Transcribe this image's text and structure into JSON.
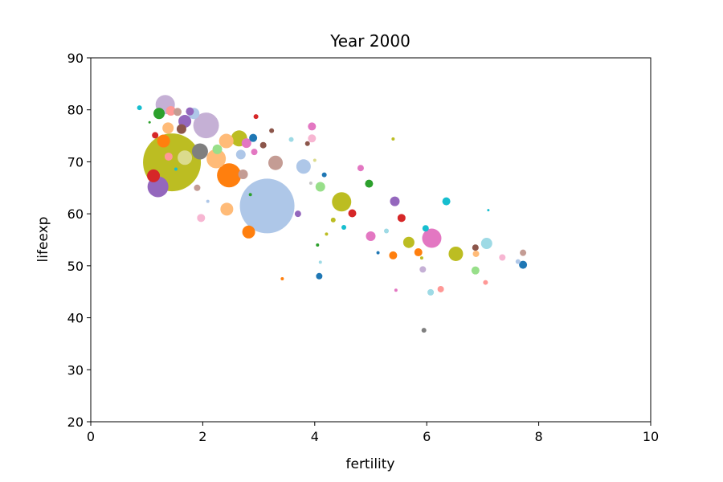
{
  "chart_data": {
    "type": "scatter",
    "title": "Year 2000",
    "xlabel": "fertility",
    "ylabel": "lifeexp",
    "xlim": [
      0,
      10
    ],
    "ylim": [
      20,
      90
    ],
    "xticks": [
      "0",
      "2",
      "4",
      "6",
      "8",
      "10"
    ],
    "yticks": [
      "20",
      "30",
      "40",
      "50",
      "60",
      "70",
      "80",
      "90"
    ],
    "grid": false,
    "legend": "none",
    "points": [
      {
        "x": 0.87,
        "y": 80.4,
        "s": 3,
        "c": "#17becf"
      },
      {
        "x": 1.33,
        "y": 81.0,
        "s": 12,
        "c": "#c5b0d5"
      },
      {
        "x": 1.45,
        "y": 69.9,
        "s": 36,
        "c": "#bcbd22"
      },
      {
        "x": 3.15,
        "y": 61.5,
        "s": 34,
        "c": "#aec7e8"
      },
      {
        "x": 1.2,
        "y": 65.2,
        "s": 13,
        "c": "#9467bd"
      },
      {
        "x": 2.06,
        "y": 77.0,
        "s": 16,
        "c": "#c5b0d5"
      },
      {
        "x": 2.47,
        "y": 67.4,
        "s": 15,
        "c": "#ff7f0e"
      },
      {
        "x": 1.22,
        "y": 79.3,
        "s": 7,
        "c": "#2ca02c"
      },
      {
        "x": 1.68,
        "y": 77.8,
        "s": 8,
        "c": "#9467bd"
      },
      {
        "x": 1.38,
        "y": 76.5,
        "s": 7,
        "c": "#ffbb78"
      },
      {
        "x": 1.3,
        "y": 74.0,
        "s": 8,
        "c": "#ff7f0e"
      },
      {
        "x": 1.12,
        "y": 67.3,
        "s": 8,
        "c": "#d62728"
      },
      {
        "x": 1.68,
        "y": 70.8,
        "s": 9,
        "c": "#dbdb8d"
      },
      {
        "x": 1.95,
        "y": 72.0,
        "s": 10,
        "c": "#7f7f7f"
      },
      {
        "x": 2.24,
        "y": 70.6,
        "s": 12,
        "c": "#ffbb78"
      },
      {
        "x": 2.42,
        "y": 74.0,
        "s": 9,
        "c": "#ffbb78"
      },
      {
        "x": 2.65,
        "y": 74.5,
        "s": 10,
        "c": "#bcbd22"
      },
      {
        "x": 2.68,
        "y": 71.4,
        "s": 6,
        "c": "#aec7e8"
      },
      {
        "x": 1.84,
        "y": 79.3,
        "s": 7,
        "c": "#aec7e8"
      },
      {
        "x": 1.77,
        "y": 79.7,
        "s": 5,
        "c": "#9467bd"
      },
      {
        "x": 1.55,
        "y": 79.6,
        "s": 5,
        "c": "#c49c94"
      },
      {
        "x": 2.9,
        "y": 74.6,
        "s": 5,
        "c": "#1f77b4"
      },
      {
        "x": 2.95,
        "y": 78.7,
        "s": 3,
        "c": "#d62728"
      },
      {
        "x": 3.08,
        "y": 73.2,
        "s": 4,
        "c": "#8c564b"
      },
      {
        "x": 2.72,
        "y": 67.6,
        "s": 6,
        "c": "#c49c94"
      },
      {
        "x": 3.3,
        "y": 69.8,
        "s": 9,
        "c": "#c49c94"
      },
      {
        "x": 3.8,
        "y": 69.1,
        "s": 9,
        "c": "#aec7e8"
      },
      {
        "x": 2.43,
        "y": 60.9,
        "s": 8,
        "c": "#ffbb78"
      },
      {
        "x": 2.82,
        "y": 56.5,
        "s": 8,
        "c": "#ff7f0e"
      },
      {
        "x": 4.48,
        "y": 62.3,
        "s": 12,
        "c": "#bcbd22"
      },
      {
        "x": 4.1,
        "y": 65.2,
        "s": 6,
        "c": "#98df8a"
      },
      {
        "x": 4.67,
        "y": 60.1,
        "s": 5,
        "c": "#d62728"
      },
      {
        "x": 4.97,
        "y": 65.8,
        "s": 5,
        "c": "#2ca02c"
      },
      {
        "x": 3.95,
        "y": 76.8,
        "s": 5,
        "c": "#e377c2"
      },
      {
        "x": 3.95,
        "y": 74.5,
        "s": 5,
        "c": "#f7b6d2"
      },
      {
        "x": 3.87,
        "y": 73.5,
        "s": 3,
        "c": "#8c564b"
      },
      {
        "x": 3.23,
        "y": 76.0,
        "s": 3,
        "c": "#8c564b"
      },
      {
        "x": 3.7,
        "y": 60.0,
        "s": 4,
        "c": "#9467bd"
      },
      {
        "x": 4.17,
        "y": 67.5,
        "s": 3,
        "c": "#1f77b4"
      },
      {
        "x": 4.82,
        "y": 68.8,
        "s": 4,
        "c": "#e377c2"
      },
      {
        "x": 5.43,
        "y": 62.4,
        "s": 6,
        "c": "#9467bd"
      },
      {
        "x": 5.55,
        "y": 59.2,
        "s": 5,
        "c": "#d62728"
      },
      {
        "x": 5.0,
        "y": 55.7,
        "s": 6,
        "c": "#e377c2"
      },
      {
        "x": 6.09,
        "y": 55.3,
        "s": 12,
        "c": "#e377c2"
      },
      {
        "x": 5.68,
        "y": 54.5,
        "s": 7,
        "c": "#bcbd22"
      },
      {
        "x": 6.52,
        "y": 52.3,
        "s": 9,
        "c": "#bcbd22"
      },
      {
        "x": 6.35,
        "y": 62.4,
        "s": 5,
        "c": "#17becf"
      },
      {
        "x": 5.85,
        "y": 52.6,
        "s": 5,
        "c": "#ff7f0e"
      },
      {
        "x": 5.4,
        "y": 52.0,
        "s": 5,
        "c": "#ff7f0e"
      },
      {
        "x": 7.07,
        "y": 54.3,
        "s": 7,
        "c": "#9edae5"
      },
      {
        "x": 6.87,
        "y": 53.5,
        "s": 4,
        "c": "#8c564b"
      },
      {
        "x": 6.88,
        "y": 52.3,
        "s": 4,
        "c": "#ffbb78"
      },
      {
        "x": 7.72,
        "y": 52.5,
        "s": 4,
        "c": "#c49c94"
      },
      {
        "x": 7.72,
        "y": 50.2,
        "s": 5,
        "c": "#1f77b4"
      },
      {
        "x": 7.35,
        "y": 51.6,
        "s": 4,
        "c": "#f7b6d2"
      },
      {
        "x": 6.87,
        "y": 49.1,
        "s": 5,
        "c": "#98df8a"
      },
      {
        "x": 7.05,
        "y": 46.8,
        "s": 3,
        "c": "#ff9896"
      },
      {
        "x": 6.25,
        "y": 45.5,
        "s": 4,
        "c": "#ff9896"
      },
      {
        "x": 6.07,
        "y": 44.9,
        "s": 4,
        "c": "#9edae5"
      },
      {
        "x": 5.93,
        "y": 49.3,
        "s": 4,
        "c": "#c5b0d5"
      },
      {
        "x": 4.08,
        "y": 48.0,
        "s": 4,
        "c": "#1f77b4"
      },
      {
        "x": 5.95,
        "y": 37.6,
        "s": 3,
        "c": "#7f7f7f"
      },
      {
        "x": 1.97,
        "y": 59.2,
        "s": 5,
        "c": "#f7b6d2"
      },
      {
        "x": 1.9,
        "y": 65.0,
        "s": 4,
        "c": "#c49c94"
      },
      {
        "x": 1.62,
        "y": 76.3,
        "s": 6,
        "c": "#8c564b"
      },
      {
        "x": 1.43,
        "y": 79.8,
        "s": 6,
        "c": "#ff9896"
      },
      {
        "x": 1.39,
        "y": 71.0,
        "s": 5,
        "c": "#ff9896"
      },
      {
        "x": 1.15,
        "y": 75.1,
        "s": 4,
        "c": "#d62728"
      },
      {
        "x": 2.26,
        "y": 72.4,
        "s": 6,
        "c": "#98df8a"
      },
      {
        "x": 2.78,
        "y": 73.6,
        "s": 6,
        "c": "#e377c2"
      },
      {
        "x": 2.92,
        "y": 71.9,
        "s": 4,
        "c": "#e377c2"
      },
      {
        "x": 5.98,
        "y": 57.2,
        "s": 4,
        "c": "#17becf"
      },
      {
        "x": 5.28,
        "y": 56.7,
        "s": 3,
        "c": "#9edae5"
      },
      {
        "x": 4.52,
        "y": 57.4,
        "s": 3,
        "c": "#17becf"
      },
      {
        "x": 4.33,
        "y": 58.8,
        "s": 3,
        "c": "#bcbd22"
      },
      {
        "x": 5.4,
        "y": 74.4,
        "s": 2,
        "c": "#bcbd22"
      },
      {
        "x": 3.58,
        "y": 74.3,
        "s": 3,
        "c": "#9edae5"
      },
      {
        "x": 2.09,
        "y": 62.4,
        "s": 2,
        "c": "#aec7e8"
      },
      {
        "x": 3.42,
        "y": 47.5,
        "s": 2,
        "c": "#ff7f0e"
      },
      {
        "x": 4.21,
        "y": 56.1,
        "s": 2,
        "c": "#bcbd22"
      },
      {
        "x": 5.45,
        "y": 45.3,
        "s": 2,
        "c": "#e377c2"
      },
      {
        "x": 5.13,
        "y": 52.5,
        "s": 2,
        "c": "#1f77b4"
      },
      {
        "x": 5.91,
        "y": 51.5,
        "s": 2,
        "c": "#bcbd22"
      },
      {
        "x": 4.1,
        "y": 50.7,
        "s": 2,
        "c": "#9edae5"
      },
      {
        "x": 4.05,
        "y": 54.0,
        "s": 2,
        "c": "#2ca02c"
      },
      {
        "x": 2.85,
        "y": 63.7,
        "s": 2,
        "c": "#2ca02c"
      },
      {
        "x": 1.52,
        "y": 68.6,
        "s": 2,
        "c": "#17becf"
      },
      {
        "x": 1.05,
        "y": 77.6,
        "s": 1.5,
        "c": "#2ca02c"
      },
      {
        "x": 7.63,
        "y": 50.8,
        "s": 3,
        "c": "#aec7e8"
      },
      {
        "x": 7.1,
        "y": 60.7,
        "s": 1.5,
        "c": "#17becf"
      },
      {
        "x": 4.0,
        "y": 70.3,
        "s": 2,
        "c": "#dbdb8d"
      },
      {
        "x": 3.93,
        "y": 65.9,
        "s": 2,
        "c": "#c7c7c7"
      }
    ]
  }
}
